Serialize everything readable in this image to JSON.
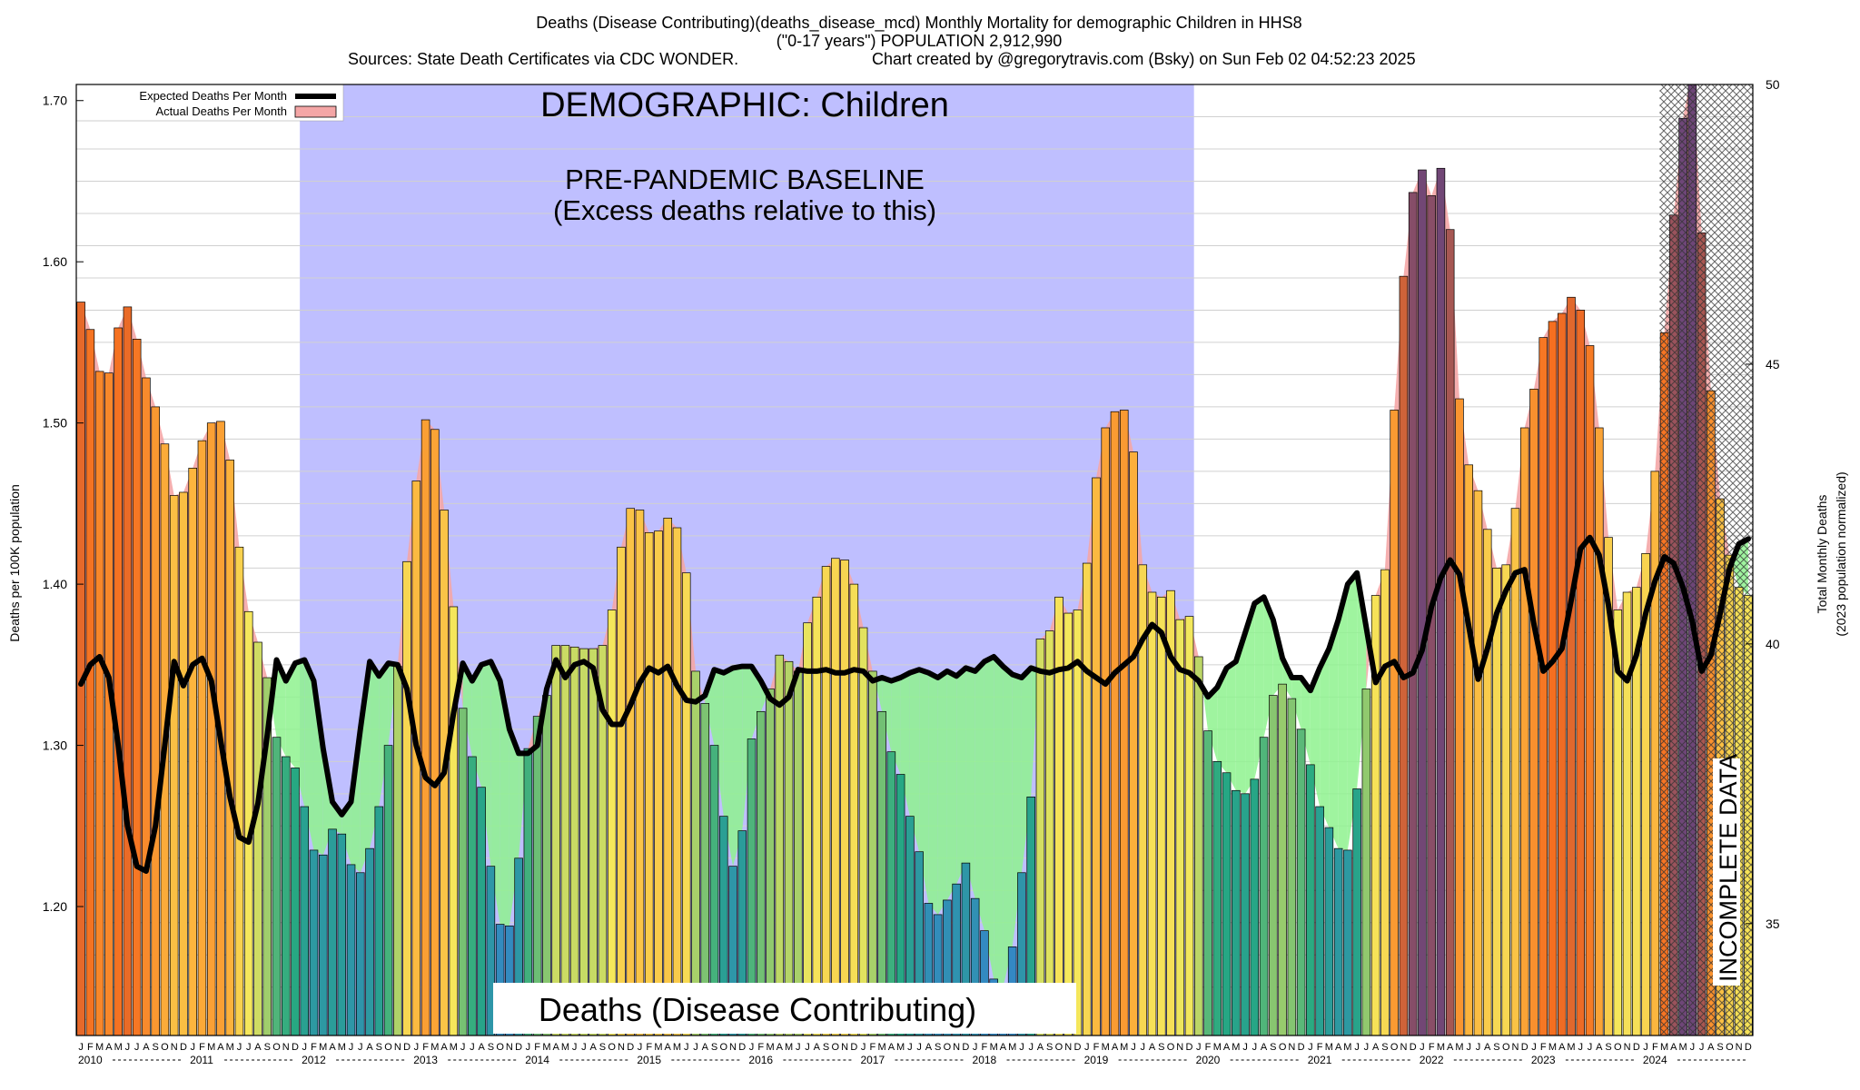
{
  "header": {
    "line1": "Deaths (Disease Contributing)(deaths_disease_mcd) Monthly Mortality for demographic Children in HHS8",
    "line2": "(\"0-17 years\") POPULATION 2,912,990",
    "line3_left": "Sources: State Death Certificates via CDC WONDER.",
    "line3_right": "Chart created by @gregorytravis.com (Bsky) on Sun Feb 02 04:52:23 2025"
  },
  "annotations": {
    "demographic": "DEMOGRAPHIC: Children",
    "baseline_line1": "PRE-PANDEMIC BASELINE",
    "baseline_line2": "(Excess deaths relative to this)",
    "bottom_label": "Deaths (Disease Contributing)",
    "incomplete": "INCOMPLETE DATA"
  },
  "legend": {
    "expected": "Expected Deaths Per Month",
    "actual": "Actual Deaths Per Month"
  },
  "colors": {
    "baseline_shade": "#bfbfff",
    "expected_line": "#000000",
    "actual_fill": "#f4a6a6",
    "deficit_fill": "#8ef28e",
    "grid": "#d0d0d0",
    "incomplete_hatch": "#444444"
  },
  "chart_data": {
    "type": "bar",
    "ylabel": "Deaths per 100K population",
    "y2label_line1": "Total Monthly Deaths",
    "y2label_line2": "(2023 population normalized)",
    "ylim": [
      1.12,
      1.71
    ],
    "y_ticks": [
      "1.20",
      "1.30",
      "1.40",
      "1.50",
      "1.60",
      "1.70"
    ],
    "y2lim": [
      33.0,
      50.0
    ],
    "y2_ticks": [
      "35",
      "40",
      "45",
      "50"
    ],
    "start_year": 2010,
    "years": [
      "2010",
      "2011",
      "2012",
      "2013",
      "2014",
      "2015",
      "2016",
      "2017",
      "2018",
      "2019",
      "2020",
      "2021",
      "2022",
      "2023",
      "2024"
    ],
    "month_letters": [
      "J",
      "F",
      "M",
      "A",
      "M",
      "J",
      "J",
      "A",
      "S",
      "O",
      "N",
      "D"
    ],
    "baseline_years": [
      "2012",
      "2019"
    ],
    "incomplete_from": "2024 Mar",
    "actual": [
      1.575,
      1.558,
      1.532,
      1.531,
      1.559,
      1.572,
      1.552,
      1.528,
      1.51,
      1.487,
      1.455,
      1.457,
      1.472,
      1.489,
      1.5,
      1.501,
      1.477,
      1.423,
      1.383,
      1.364,
      1.342,
      1.305,
      1.293,
      1.286,
      1.262,
      1.235,
      1.232,
      1.248,
      1.245,
      1.226,
      1.221,
      1.236,
      1.262,
      1.3,
      1.349,
      1.414,
      1.464,
      1.502,
      1.496,
      1.446,
      1.386,
      1.323,
      1.293,
      1.274,
      1.225,
      1.189,
      1.188,
      1.23,
      1.298,
      1.318,
      1.331,
      1.362,
      1.362,
      1.361,
      1.36,
      1.36,
      1.362,
      1.384,
      1.423,
      1.447,
      1.446,
      1.432,
      1.433,
      1.441,
      1.435,
      1.407,
      1.346,
      1.326,
      1.3,
      1.256,
      1.225,
      1.247,
      1.304,
      1.321,
      1.335,
      1.356,
      1.352,
      1.346,
      1.376,
      1.392,
      1.411,
      1.416,
      1.415,
      1.4,
      1.373,
      1.346,
      1.321,
      1.296,
      1.282,
      1.256,
      1.234,
      1.202,
      1.195,
      1.204,
      1.214,
      1.227,
      1.205,
      1.185,
      1.155,
      1.15,
      1.175,
      1.221,
      1.268,
      1.366,
      1.371,
      1.392,
      1.382,
      1.384,
      1.413,
      1.466,
      1.497,
      1.507,
      1.508,
      1.482,
      1.412,
      1.395,
      1.392,
      1.396,
      1.378,
      1.38,
      1.355,
      1.309,
      1.29,
      1.283,
      1.272,
      1.27,
      1.279,
      1.305,
      1.331,
      1.338,
      1.329,
      1.31,
      1.288,
      1.262,
      1.249,
      1.236,
      1.235,
      1.273,
      1.335,
      1.393,
      1.409,
      1.508,
      1.591,
      1.643,
      1.657,
      1.641,
      1.658,
      1.62,
      1.515,
      1.474,
      1.458,
      1.434,
      1.41,
      1.412,
      1.447,
      1.497,
      1.521,
      1.553,
      1.563,
      1.568,
      1.578,
      1.57,
      1.548,
      1.497,
      1.429,
      1.384,
      1.395,
      1.398,
      1.419,
      1.47,
      1.556,
      1.629,
      1.689,
      1.72,
      1.618,
      1.52,
      1.453,
      1.418,
      1.398,
      1.393
    ],
    "expected": [
      1.338,
      1.35,
      1.355,
      1.342,
      1.3,
      1.25,
      1.225,
      1.222,
      1.25,
      1.3,
      1.352,
      1.337,
      1.35,
      1.354,
      1.34,
      1.303,
      1.268,
      1.243,
      1.24,
      1.264,
      1.306,
      1.353,
      1.34,
      1.351,
      1.353,
      1.34,
      1.298,
      1.265,
      1.257,
      1.265,
      1.31,
      1.352,
      1.343,
      1.351,
      1.35,
      1.335,
      1.3,
      1.28,
      1.275,
      1.283,
      1.32,
      1.351,
      1.34,
      1.35,
      1.352,
      1.34,
      1.31,
      1.295,
      1.295,
      1.3,
      1.335,
      1.353,
      1.342,
      1.35,
      1.352,
      1.348,
      1.322,
      1.313,
      1.313,
      1.325,
      1.339,
      1.348,
      1.345,
      1.349,
      1.337,
      1.328,
      1.327,
      1.331,
      1.347,
      1.345,
      1.348,
      1.349,
      1.349,
      1.34,
      1.329,
      1.325,
      1.33,
      1.347,
      1.346,
      1.346,
      1.347,
      1.345,
      1.345,
      1.347,
      1.346,
      1.34,
      1.342,
      1.34,
      1.342,
      1.345,
      1.347,
      1.345,
      1.342,
      1.346,
      1.343,
      1.348,
      1.346,
      1.352,
      1.355,
      1.349,
      1.344,
      1.342,
      1.348,
      1.346,
      1.345,
      1.347,
      1.348,
      1.352,
      1.346,
      1.342,
      1.338,
      1.345,
      1.35,
      1.355,
      1.366,
      1.375,
      1.37,
      1.355,
      1.347,
      1.345,
      1.34,
      1.33,
      1.336,
      1.348,
      1.352,
      1.37,
      1.388,
      1.392,
      1.378,
      1.354,
      1.342,
      1.342,
      1.334,
      1.348,
      1.36,
      1.378,
      1.4,
      1.407,
      1.373,
      1.339,
      1.349,
      1.352,
      1.342,
      1.345,
      1.359,
      1.386,
      1.404,
      1.415,
      1.406,
      1.374,
      1.341,
      1.36,
      1.382,
      1.396,
      1.407,
      1.409,
      1.375,
      1.346,
      1.352,
      1.36,
      1.39,
      1.422,
      1.429,
      1.418,
      1.387,
      1.346,
      1.34,
      1.356,
      1.382,
      1.402,
      1.417,
      1.413,
      1.398,
      1.377,
      1.346,
      1.356,
      1.382,
      1.41,
      1.425,
      1.428
    ]
  }
}
